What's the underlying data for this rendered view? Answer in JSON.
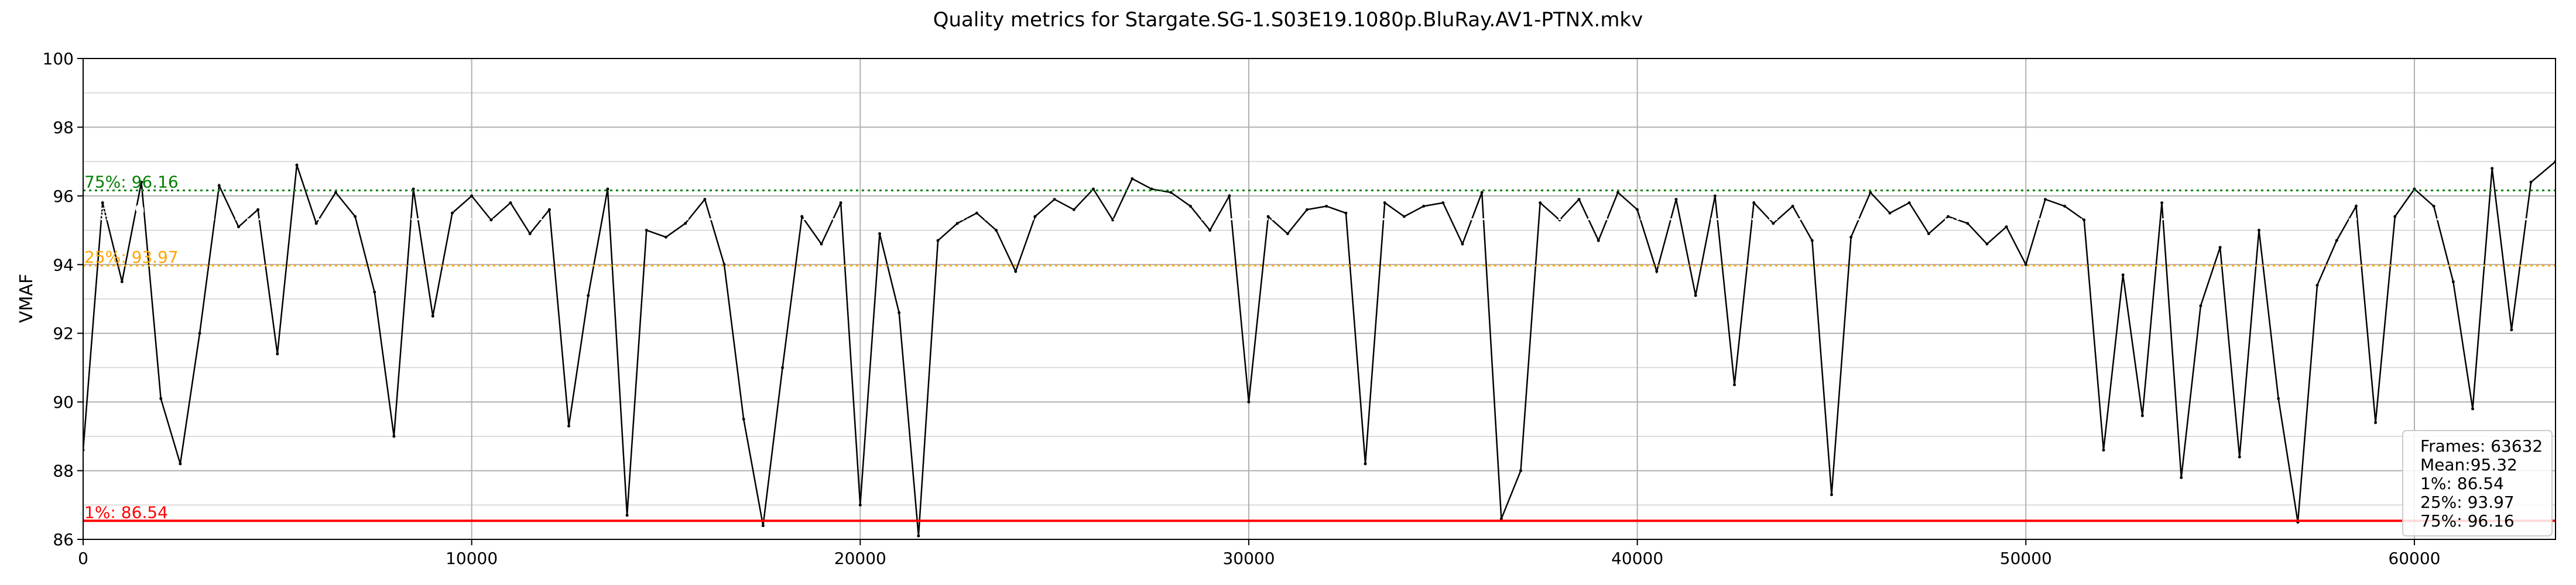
{
  "chart_data": {
    "type": "line",
    "title": "Quality metrics for Stargate.SG-1.S03E19.1080p.BluRay.AV1-PTNX.mkv",
    "xlabel": "",
    "ylabel": "VMAF",
    "xlim": [
      0,
      63632
    ],
    "ylim": [
      86,
      100
    ],
    "xticks": [
      0,
      10000,
      20000,
      30000,
      40000,
      50000,
      60000
    ],
    "yticks": [
      86,
      88,
      90,
      92,
      94,
      96,
      98,
      100
    ],
    "grid": true,
    "series": [
      {
        "name": "VMAF",
        "color": "#000000",
        "x": [
          0,
          500,
          1000,
          1500,
          2000,
          2500,
          3000,
          3500,
          4000,
          4500,
          5000,
          5500,
          6000,
          6500,
          7000,
          7500,
          8000,
          8500,
          9000,
          9500,
          10000,
          10500,
          11000,
          11500,
          12000,
          12500,
          13000,
          13500,
          14000,
          14500,
          15000,
          15500,
          16000,
          16500,
          17000,
          17500,
          18000,
          18500,
          19000,
          19500,
          20000,
          20500,
          21000,
          21500,
          22000,
          22500,
          23000,
          23500,
          24000,
          24500,
          25000,
          25500,
          26000,
          26500,
          27000,
          27500,
          28000,
          28500,
          29000,
          29500,
          30000,
          30500,
          31000,
          31500,
          32000,
          32500,
          33000,
          33500,
          34000,
          34500,
          35000,
          35500,
          36000,
          36500,
          37000,
          37500,
          38000,
          38500,
          39000,
          39500,
          40000,
          40500,
          41000,
          41500,
          42000,
          42500,
          43000,
          43500,
          44000,
          44500,
          45000,
          45500,
          46000,
          46500,
          47000,
          47500,
          48000,
          48500,
          49000,
          49500,
          50000,
          50500,
          51000,
          51500,
          52000,
          52500,
          53000,
          53500,
          54000,
          54500,
          55000,
          55500,
          56000,
          56500,
          57000,
          57500,
          58000,
          58500,
          59000,
          59500,
          60000,
          60500,
          61000,
          61500,
          62000,
          62500,
          63000,
          63632
        ],
        "y": [
          88.6,
          95.8,
          93.5,
          96.4,
          90.1,
          88.2,
          92.0,
          96.3,
          95.1,
          95.6,
          91.4,
          96.9,
          95.2,
          96.1,
          95.4,
          93.2,
          89.0,
          96.2,
          92.5,
          95.5,
          96.0,
          95.3,
          95.8,
          94.9,
          95.6,
          89.3,
          93.1,
          96.2,
          86.7,
          95.0,
          94.8,
          95.2,
          95.9,
          94.0,
          89.5,
          86.4,
          91.0,
          95.4,
          94.6,
          95.8,
          87.0,
          94.9,
          92.6,
          86.1,
          94.7,
          95.2,
          95.5,
          95.0,
          93.8,
          95.4,
          95.9,
          95.6,
          96.2,
          95.3,
          96.5,
          96.2,
          96.1,
          95.7,
          95.0,
          96.0,
          90.0,
          95.4,
          94.9,
          95.6,
          95.7,
          95.5,
          88.2,
          95.8,
          95.4,
          95.7,
          95.8,
          94.6,
          96.1,
          86.6,
          88.0,
          95.8,
          95.3,
          95.9,
          94.7,
          96.1,
          95.6,
          93.8,
          95.9,
          93.1,
          96.0,
          90.5,
          95.8,
          95.2,
          95.7,
          94.7,
          87.3,
          94.8,
          96.1,
          95.5,
          95.8,
          94.9,
          95.4,
          95.2,
          94.6,
          95.1,
          94.0,
          95.9,
          95.7,
          95.3,
          88.6,
          93.7,
          89.6,
          95.8,
          87.8,
          92.8,
          94.5,
          88.4,
          95.0,
          90.1,
          86.5,
          93.4,
          94.7,
          95.7,
          89.4,
          95.4,
          96.2,
          95.7,
          93.5,
          89.8,
          96.8,
          92.1,
          96.4,
          97.0
        ]
      }
    ],
    "reference_lines": [
      {
        "name": "1%",
        "label": "1%: 86.54",
        "value": 86.54,
        "color": "#ff0000",
        "style": "solid"
      },
      {
        "name": "25%",
        "label": "25%: 93.97",
        "value": 93.97,
        "color": "#ffa500",
        "style": "dotted"
      },
      {
        "name": "Mean",
        "label": "Mean:95.32",
        "value": 95.32,
        "color": "#ffffff",
        "style": "dotted"
      },
      {
        "name": "75%",
        "label": "75%: 96.16",
        "value": 96.16,
        "color": "#008000",
        "style": "dotted"
      }
    ],
    "legend": {
      "placement": "bottom-right",
      "lines": [
        "Frames: 63632",
        "Mean:95.32",
        "1%: 86.54",
        "25%: 93.97",
        "75%: 96.16"
      ]
    }
  }
}
